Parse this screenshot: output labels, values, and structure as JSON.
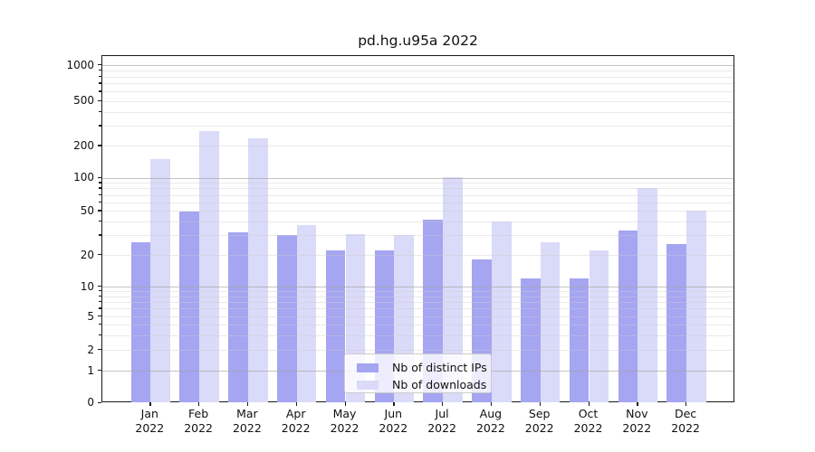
{
  "chart_data": {
    "type": "bar",
    "title": "pd.hg.u95a 2022",
    "y_scale": "symlog",
    "grid": true,
    "ylim": [
      0,
      1400
    ],
    "y_ticks": [
      0,
      1,
      2,
      5,
      10,
      20,
      50,
      100,
      200,
      500,
      1000
    ],
    "categories": [
      {
        "month": "Jan",
        "year": "2022"
      },
      {
        "month": "Feb",
        "year": "2022"
      },
      {
        "month": "Mar",
        "year": "2022"
      },
      {
        "month": "Apr",
        "year": "2022"
      },
      {
        "month": "May",
        "year": "2022"
      },
      {
        "month": "Jun",
        "year": "2022"
      },
      {
        "month": "Jul",
        "year": "2022"
      },
      {
        "month": "Aug",
        "year": "2022"
      },
      {
        "month": "Sep",
        "year": "2022"
      },
      {
        "month": "Oct",
        "year": "2022"
      },
      {
        "month": "Nov",
        "year": "2022"
      },
      {
        "month": "Dec",
        "year": "2022"
      }
    ],
    "series": [
      {
        "name": "Nb of distinct IPs",
        "color": "#a5a5f2",
        "values": [
          26,
          49,
          32,
          30,
          22,
          22,
          42,
          18,
          12,
          12,
          33,
          25
        ]
      },
      {
        "name": "Nb of downloads",
        "color": "#dadaf9",
        "values": [
          150,
          270,
          235,
          37,
          31,
          30,
          102,
          40,
          26,
          22,
          80,
          50
        ]
      }
    ],
    "legend_position": "lower center"
  }
}
